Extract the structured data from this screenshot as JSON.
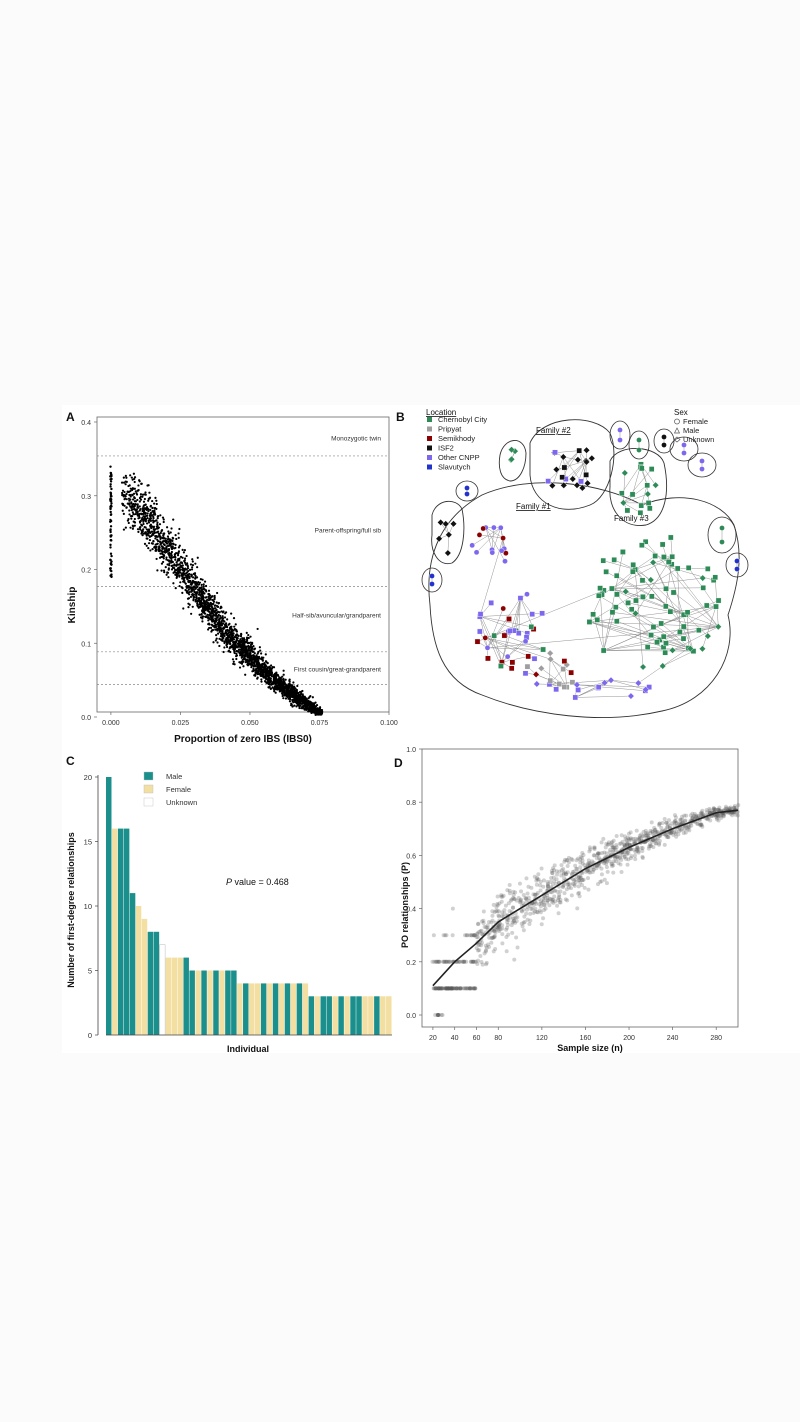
{
  "panelA": {
    "label": "A",
    "ylabel": "Kinship",
    "xlabel": "Proportion of zero IBS (IBS0)",
    "xticks": [
      "0.000",
      "0.025",
      "0.050",
      "0.075",
      "0.100"
    ],
    "yticks": [
      "0.0",
      "0.1",
      "0.2",
      "0.3",
      "0.4"
    ],
    "thresholds": [
      {
        "label": "Monozygotic twin",
        "value": 0.354
      },
      {
        "label": "Parent-offspring/full sib",
        "value": 0.177
      },
      {
        "label": "Half-sib/avuncular/grandparent",
        "value": 0.0884
      },
      {
        "label": "First cousin/great-grandparent",
        "value": 0.0442
      }
    ],
    "annotation_ys": [
      0.375,
      0.25,
      0.135,
      0.062
    ]
  },
  "panelB": {
    "label": "B",
    "legend_title": "Location",
    "locations": [
      {
        "name": "Chernobyl City",
        "color": "#2e8b57"
      },
      {
        "name": "Pripyat",
        "color": "#9e9e9e"
      },
      {
        "name": "Semikhody",
        "color": "#8b0000"
      },
      {
        "name": "ISF2",
        "color": "#111111"
      },
      {
        "name": "Other CNPP",
        "color": "#7b68ee"
      },
      {
        "name": "Slavutych",
        "color": "#2233cc"
      }
    ],
    "sex_title": "Sex",
    "sexes": [
      "Female",
      "Male",
      "Unknown"
    ],
    "families": [
      "Family #1",
      "Family #2",
      "Family #3"
    ]
  },
  "panelC": {
    "label": "C",
    "ylabel": "Number of first-degree relationships",
    "xlabel": "Individual",
    "yticks": [
      "0",
      "5",
      "10",
      "15",
      "20"
    ],
    "legend": [
      {
        "name": "Male",
        "color": "#1a8f8c"
      },
      {
        "name": "Female",
        "color": "#f3dfa2"
      },
      {
        "name": "Unknown",
        "color": "#ffffff"
      }
    ],
    "pvalue_italic": "P",
    "pvalue_text": " value = 0.468"
  },
  "panelD": {
    "label": "D",
    "ylabel": "PO relationships (P)",
    "xlabel": "Sample size (n)",
    "xticks": [
      "20",
      "40",
      "60",
      "80",
      "120",
      "160",
      "200",
      "240",
      "280"
    ],
    "yticks": [
      "0.0",
      "0.2",
      "0.4",
      "0.6",
      "0.8",
      "1.0"
    ]
  },
  "chart_data": [
    {
      "type": "scatter",
      "panel": "A",
      "xlabel": "Proportion of zero IBS (IBS0)",
      "ylabel": "Kinship",
      "xlim": [
        -0.005,
        0.1
      ],
      "ylim": [
        0,
        0.4
      ],
      "series_points_description_free": true,
      "columns_at_zero": {
        "x": 0.0,
        "y_range": [
          0.19,
          0.34
        ]
      },
      "trend": [
        [
          0.003,
          0.32
        ],
        [
          0.02,
          0.23
        ],
        [
          0.04,
          0.12
        ],
        [
          0.06,
          0.045
        ],
        [
          0.075,
          0.005
        ]
      ]
    },
    {
      "type": "bar",
      "panel": "C",
      "ylabel": "Number of first-degree relationships",
      "xlabel": "Individual",
      "ylim": [
        0,
        20
      ],
      "values": [
        20,
        16,
        16,
        16,
        11,
        10,
        9,
        8,
        8,
        7,
        6,
        6,
        6,
        6,
        5,
        5,
        5,
        5,
        5,
        5,
        5,
        5,
        4,
        4,
        4,
        4,
        4,
        4,
        4,
        4,
        4,
        4,
        4,
        4,
        3,
        3,
        3,
        3,
        3,
        3,
        3,
        3,
        3,
        3,
        3,
        3,
        3,
        3
      ],
      "sex": [
        "M",
        "F",
        "M",
        "M",
        "M",
        "F",
        "F",
        "M",
        "M",
        "U",
        "F",
        "F",
        "F",
        "M",
        "M",
        "F",
        "M",
        "F",
        "M",
        "F",
        "M",
        "M",
        "F",
        "M",
        "F",
        "F",
        "M",
        "F",
        "M",
        "F",
        "M",
        "F",
        "M",
        "F",
        "M",
        "F",
        "M",
        "M",
        "F",
        "M",
        "F",
        "M",
        "M",
        "F",
        "F",
        "M",
        "F",
        "F"
      ]
    },
    {
      "type": "scatter",
      "panel": "D",
      "xlabel": "Sample size (n)",
      "ylabel": "PO relationships (P)",
      "xlim": [
        10,
        300
      ],
      "ylim": [
        0,
        1
      ],
      "fit": [
        [
          20,
          0.11
        ],
        [
          40,
          0.2
        ],
        [
          60,
          0.27
        ],
        [
          80,
          0.35
        ],
        [
          120,
          0.45
        ],
        [
          160,
          0.55
        ],
        [
          200,
          0.63
        ],
        [
          240,
          0.7
        ],
        [
          280,
          0.76
        ],
        [
          300,
          0.77
        ]
      ]
    }
  ]
}
